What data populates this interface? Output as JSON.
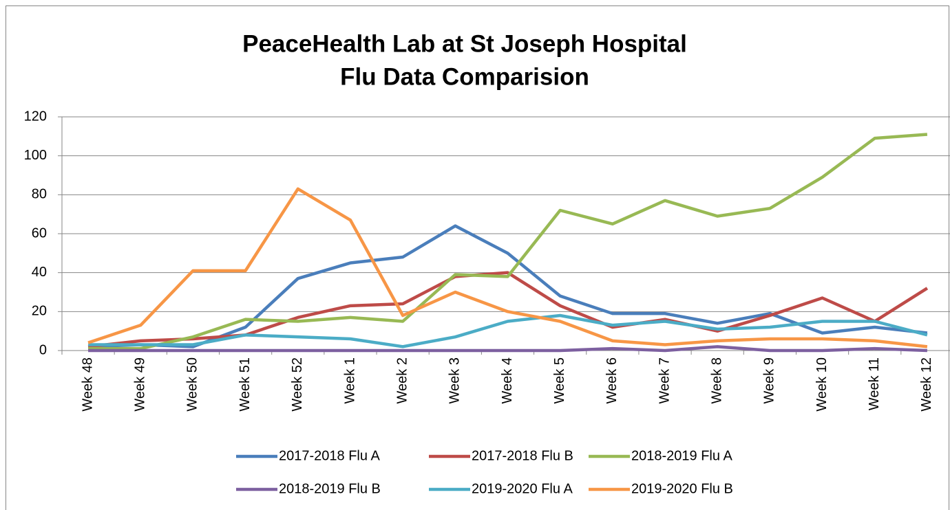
{
  "chart_data": {
    "type": "line",
    "title": [
      "PeaceHealth Lab at St Joseph Hospital",
      "Flu Data Comparision"
    ],
    "categories": [
      "Week 48",
      "Week 49",
      "Week 50",
      "Week 51",
      "Week 52",
      "Week 1",
      "Week 2",
      "Week 3",
      "Week 4",
      "Week 5",
      "Week 6",
      "Week 7",
      "Week 8",
      "Week 9",
      "Week 10",
      "Week 11",
      "Week 12"
    ],
    "series": [
      {
        "name": "2017-2018 Flu A",
        "color": "#4a7ebb",
        "values": [
          2,
          3,
          2,
          12,
          37,
          45,
          48,
          64,
          50,
          28,
          19,
          19,
          14,
          19,
          9,
          12,
          9
        ]
      },
      {
        "name": "2017-2018 Flu B",
        "color": "#be4b48",
        "values": [
          2,
          5,
          6,
          8,
          17,
          23,
          24,
          38,
          40,
          23,
          12,
          16,
          10,
          18,
          27,
          15,
          32
        ]
      },
      {
        "name": "2018-2019 Flu A",
        "color": "#98b954",
        "values": [
          1,
          1,
          7,
          16,
          15,
          17,
          15,
          39,
          38,
          72,
          65,
          77,
          69,
          73,
          89,
          109,
          111
        ]
      },
      {
        "name": "2018-2019 Flu B",
        "color": "#7d60a0",
        "values": [
          0,
          0,
          0,
          0,
          0,
          0,
          0,
          0,
          0,
          0,
          1,
          0,
          2,
          0,
          0,
          1,
          0
        ]
      },
      {
        "name": "2019-2020 Flu A",
        "color": "#4bacc6",
        "values": [
          3,
          3,
          3,
          8,
          7,
          6,
          2,
          7,
          15,
          18,
          13,
          15,
          11,
          12,
          15,
          15,
          8
        ]
      },
      {
        "name": "2019-2020 Flu B",
        "color": "#f79646",
        "values": [
          4,
          13,
          41,
          41,
          83,
          67,
          18,
          30,
          20,
          15,
          5,
          3,
          5,
          6,
          6,
          5,
          2
        ]
      }
    ],
    "ylim": [
      0,
      120
    ],
    "yticks": [
      0,
      20,
      40,
      60,
      80,
      100,
      120
    ],
    "grid": true,
    "legend": "bottom"
  }
}
